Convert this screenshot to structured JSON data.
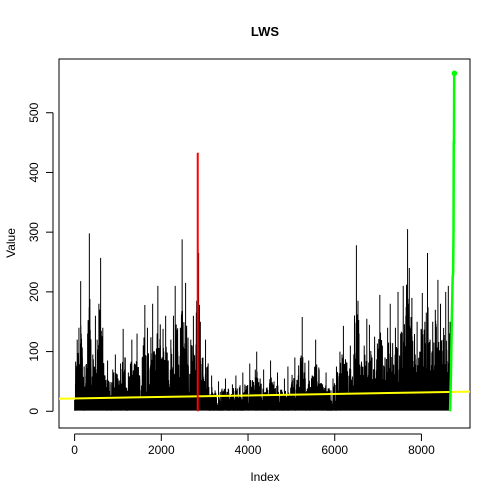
{
  "chart_data": {
    "type": "line",
    "title": "LWS",
    "xlabel": "Index",
    "ylabel": "Value",
    "xlim": [
      -360,
      9120
    ],
    "ylim": [
      -28,
      590
    ],
    "x_ticks": [
      0,
      2000,
      4000,
      6000,
      8000
    ],
    "y_ticks": [
      0,
      100,
      200,
      300,
      400,
      500
    ],
    "x_tick_labels": [
      "0",
      "2000",
      "4000",
      "6000",
      "8000"
    ],
    "y_tick_labels": [
      "0",
      "100",
      "200",
      "300",
      "400",
      "500"
    ],
    "grid": false,
    "legend": "none",
    "series": [
      {
        "role": "observed",
        "color": "#000000",
        "n_points": 8760,
        "baseline": 1,
        "peaks": [
          [
            20,
            45
          ],
          [
            60,
            120
          ],
          [
            100,
            140
          ],
          [
            140,
            218
          ],
          [
            180,
            90
          ],
          [
            220,
            75
          ],
          [
            260,
            60
          ],
          [
            300,
            130
          ],
          [
            340,
            298
          ],
          [
            380,
            70
          ],
          [
            420,
            95
          ],
          [
            480,
            160
          ],
          [
            520,
            120
          ],
          [
            560,
            180
          ],
          [
            600,
            257
          ],
          [
            650,
            140
          ],
          [
            700,
            60
          ],
          [
            760,
            85
          ],
          [
            820,
            45
          ],
          [
            880,
            70
          ],
          [
            940,
            95
          ],
          [
            1000,
            55
          ],
          [
            1060,
            80
          ],
          [
            1120,
            138
          ],
          [
            1180,
            40
          ],
          [
            1240,
            65
          ],
          [
            1320,
            120
          ],
          [
            1380,
            80
          ],
          [
            1440,
            130
          ],
          [
            1500,
            60
          ],
          [
            1560,
            90
          ],
          [
            1620,
            178
          ],
          [
            1680,
            140
          ],
          [
            1740,
            70
          ],
          [
            1800,
            180
          ],
          [
            1860,
            95
          ],
          [
            1920,
            210
          ],
          [
            1980,
            110
          ],
          [
            2040,
            138
          ],
          [
            2100,
            160
          ],
          [
            2160,
            85
          ],
          [
            2220,
            120
          ],
          [
            2280,
            160
          ],
          [
            2320,
            210
          ],
          [
            2380,
            100
          ],
          [
            2440,
            140
          ],
          [
            2480,
            288
          ],
          [
            2520,
            130
          ],
          [
            2560,
            215
          ],
          [
            2620,
            70
          ],
          [
            2680,
            120
          ],
          [
            2740,
            160
          ],
          [
            2800,
            100
          ],
          [
            2860,
            265
          ],
          [
            2900,
            150
          ],
          [
            2960,
            90
          ],
          [
            3020,
            120
          ],
          [
            3080,
            40
          ],
          [
            3160,
            60
          ],
          [
            3240,
            35
          ],
          [
            3320,
            50
          ],
          [
            3400,
            38
          ],
          [
            3480,
            55
          ],
          [
            3560,
            30
          ],
          [
            3640,
            45
          ],
          [
            3720,
            60
          ],
          [
            3800,
            40
          ],
          [
            3880,
            65
          ],
          [
            3960,
            35
          ],
          [
            4040,
            80
          ],
          [
            4120,
            45
          ],
          [
            4200,
            100
          ],
          [
            4280,
            55
          ],
          [
            4360,
            70
          ],
          [
            4440,
            40
          ],
          [
            4520,
            85
          ],
          [
            4600,
            50
          ],
          [
            4680,
            65
          ],
          [
            4760,
            35
          ],
          [
            4840,
            55
          ],
          [
            4920,
            75
          ],
          [
            5000,
            45
          ],
          [
            5080,
            90
          ],
          [
            5160,
            60
          ],
          [
            5250,
            158
          ],
          [
            5320,
            55
          ],
          [
            5400,
            85
          ],
          [
            5480,
            60
          ],
          [
            5560,
            120
          ],
          [
            5640,
            70
          ],
          [
            5720,
            45
          ],
          [
            5800,
            65
          ],
          [
            5880,
            35
          ],
          [
            5960,
            55
          ],
          [
            6040,
            75
          ],
          [
            6120,
            100
          ],
          [
            6200,
            143
          ],
          [
            6280,
            80
          ],
          [
            6360,
            110
          ],
          [
            6440,
            95
          ],
          [
            6500,
            278
          ],
          [
            6560,
            130
          ],
          [
            6620,
            80
          ],
          [
            6680,
            110
          ],
          [
            6740,
            155
          ],
          [
            6800,
            145
          ],
          [
            6860,
            90
          ],
          [
            6920,
            125
          ],
          [
            6980,
            70
          ],
          [
            7040,
            195
          ],
          [
            7100,
            110
          ],
          [
            7160,
            90
          ],
          [
            7220,
            140
          ],
          [
            7280,
            180
          ],
          [
            7340,
            80
          ],
          [
            7400,
            140
          ],
          [
            7460,
            200
          ],
          [
            7520,
            130
          ],
          [
            7580,
            210
          ],
          [
            7640,
            160
          ],
          [
            7680,
            305
          ],
          [
            7720,
            240
          ],
          [
            7780,
            190
          ],
          [
            7840,
            120
          ],
          [
            7900,
            150
          ],
          [
            7960,
            100
          ],
          [
            8020,
            198
          ],
          [
            8080,
            150
          ],
          [
            8140,
            265
          ],
          [
            8200,
            120
          ],
          [
            8260,
            150
          ],
          [
            8320,
            170
          ],
          [
            8380,
            220
          ],
          [
            8440,
            180
          ],
          [
            8500,
            120
          ],
          [
            8560,
            200
          ],
          [
            8620,
            210
          ],
          [
            8660,
            150
          ]
        ]
      },
      {
        "role": "highlight",
        "color": "#ff0000",
        "x": [
          2840,
          2840
        ],
        "y": [
          0,
          433
        ]
      },
      {
        "role": "forecast",
        "color": "#00ff00",
        "x": [
          8660,
          8680,
          8700,
          8720,
          8730,
          8740,
          8745,
          8750,
          8755,
          8760
        ],
        "y": [
          0,
          60,
          150,
          225,
          230,
          300,
          450,
          450,
          566,
          566
        ],
        "endpoint": [
          8760,
          566
        ]
      },
      {
        "role": "trend",
        "color": "#ffff00",
        "x": [
          -360,
          9120
        ],
        "y": [
          21,
          33
        ]
      }
    ]
  }
}
